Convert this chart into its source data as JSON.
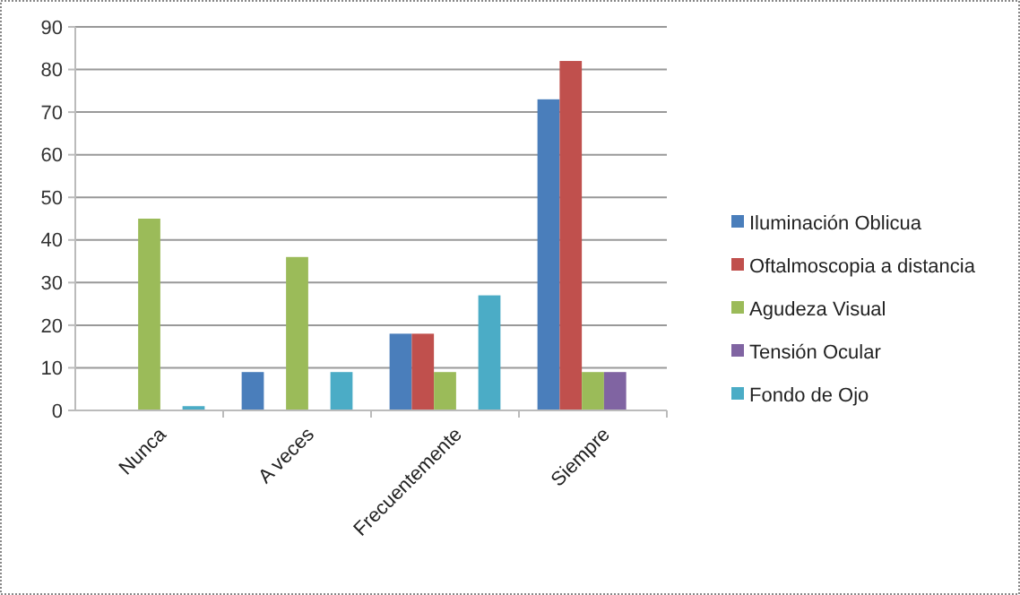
{
  "chart_data": {
    "type": "bar",
    "categories": [
      "Nunca",
      "A veces",
      "Frecuentemente",
      "Siempre"
    ],
    "series": [
      {
        "name": "Iluminación Oblicua",
        "color": "#4a7ebb",
        "values": [
          0,
          9,
          18,
          73
        ]
      },
      {
        "name": "Oftalmoscopia a distancia",
        "color": "#c0504d",
        "values": [
          0,
          0,
          18,
          82
        ]
      },
      {
        "name": "Agudeza Visual",
        "color": "#9bbb59",
        "values": [
          45,
          36,
          9,
          9
        ]
      },
      {
        "name": "Tensión Ocular",
        "color": "#8064a2",
        "values": [
          0,
          0,
          0,
          9
        ]
      },
      {
        "name": "Fondo de Ojo",
        "color": "#4bacc6",
        "values": [
          1,
          9,
          27,
          0
        ]
      }
    ],
    "ylim": [
      0,
      90
    ],
    "yticks": [
      0,
      10,
      20,
      30,
      40,
      50,
      60,
      70,
      80,
      90
    ],
    "grid": "y",
    "legend": "right"
  }
}
